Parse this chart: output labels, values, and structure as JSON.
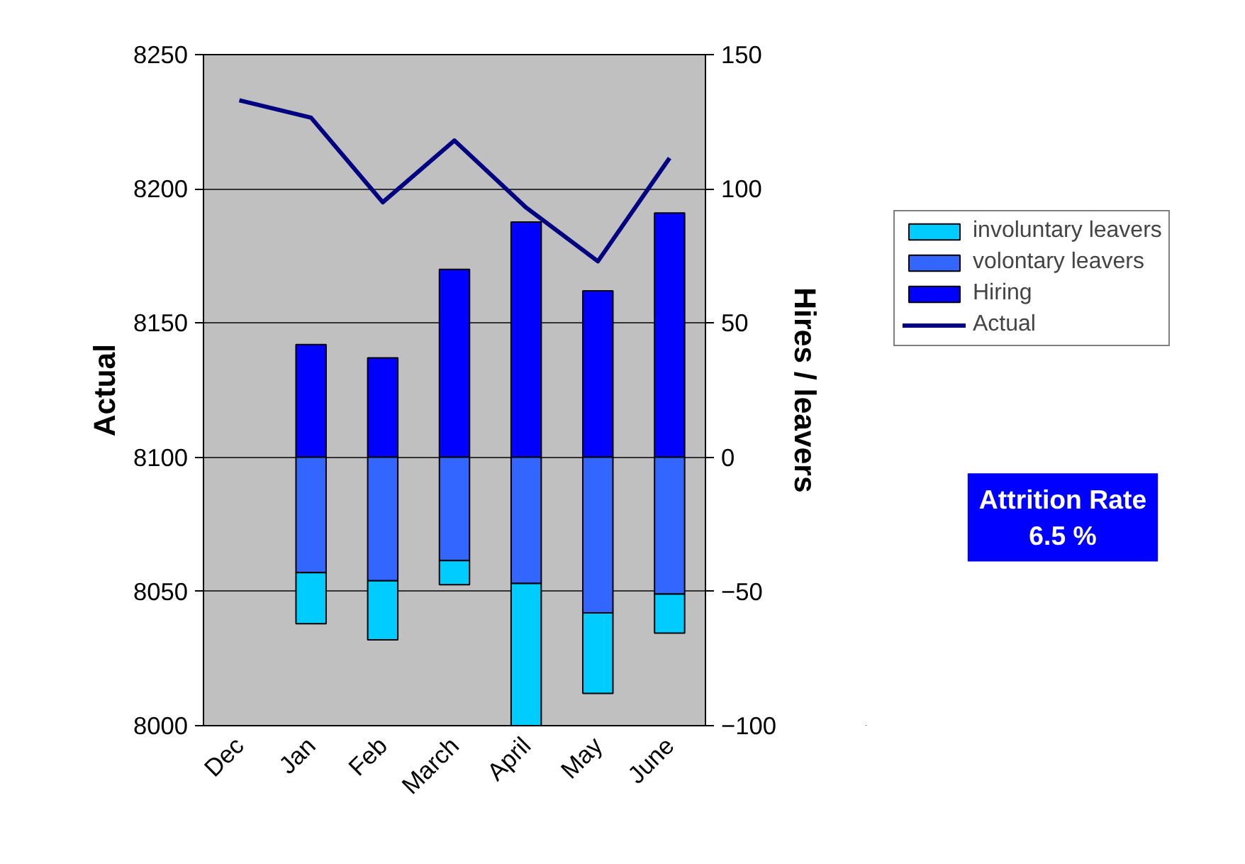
{
  "chart_data": {
    "type": "bar",
    "stacked": true,
    "ylabel": "Actual",
    "y2label": "Hires / leavers",
    "categories": [
      "Dec",
      "Jan",
      "Feb",
      "March",
      "April",
      "May",
      "June"
    ],
    "ylim": [
      8000,
      8250
    ],
    "yticks": [
      8000,
      8050,
      8100,
      8150,
      8200,
      8250
    ],
    "y2lim": [
      -100,
      150
    ],
    "y2ticks": [
      -100,
      -50,
      0,
      50,
      100,
      150
    ],
    "grid": "y",
    "legend": "right",
    "annotations": [
      "Attrition Rate\n6.5 %"
    ],
    "series": [
      {
        "name": "Hiring",
        "color": "#0000ff",
        "axis": "y2",
        "values": [
          null,
          42,
          37,
          70,
          87.6,
          62,
          91
        ]
      },
      {
        "name": "volontary leavers",
        "color": "#3366ff",
        "axis": "y2",
        "values": [
          null,
          -43,
          -46,
          -38.5,
          -47,
          -58,
          -51
        ]
      },
      {
        "name": "involuntary leavers",
        "color": "#00ccff",
        "axis": "y2",
        "values": [
          null,
          -19,
          -22,
          -9,
          -53,
          -30,
          -14.5
        ]
      },
      {
        "name": "Actual",
        "type": "line",
        "color": "#000080",
        "values": [
          8233,
          8226.5,
          8195,
          8218,
          8193,
          8173,
          8211.5
        ]
      }
    ]
  }
}
